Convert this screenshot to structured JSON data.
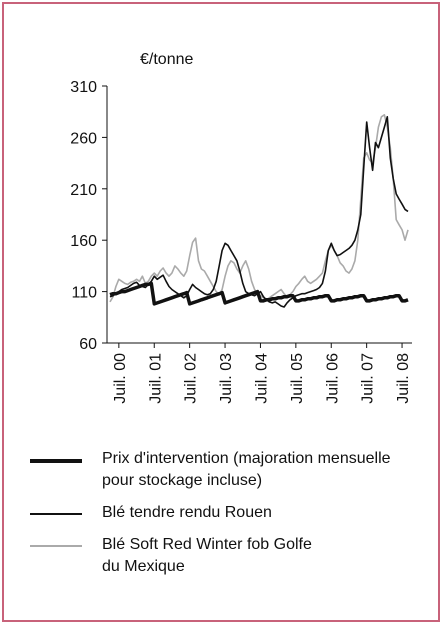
{
  "chart_data": {
    "type": "line",
    "ylabel": "€/tonne",
    "categories": [
      null,
      null,
      null,
      "Juil. 00",
      null,
      null,
      null,
      null,
      null,
      null,
      null,
      null,
      null,
      null,
      null,
      "Juil. 01",
      null,
      null,
      null,
      null,
      null,
      null,
      null,
      null,
      null,
      null,
      null,
      "Juil. 02",
      null,
      null,
      null,
      null,
      null,
      null,
      null,
      null,
      null,
      null,
      null,
      "Juil. 03",
      null,
      null,
      null,
      null,
      null,
      null,
      null,
      null,
      null,
      null,
      null,
      "Juil. 04",
      null,
      null,
      null,
      null,
      null,
      null,
      null,
      null,
      null,
      null,
      null,
      "Juil. 05",
      null,
      null,
      null,
      null,
      null,
      null,
      null,
      null,
      null,
      null,
      null,
      "Juil. 06",
      null,
      null,
      null,
      null,
      null,
      null,
      null,
      null,
      null,
      null,
      null,
      "Juil. 07",
      null,
      null,
      null,
      null,
      null,
      null,
      null,
      null,
      null,
      null,
      null,
      "Juil. 08",
      null,
      null
    ],
    "series": [
      {
        "name": "Prix d'intervention (majoration mensuelle pour stockage incluse)",
        "color": "#111111",
        "width": 3.5,
        "values": [
          107,
          108,
          108,
          109,
          110,
          110,
          111,
          112,
          113,
          114,
          115,
          116,
          117,
          117,
          118,
          98,
          99,
          100,
          101,
          102,
          103,
          104,
          105,
          106,
          107,
          108,
          109,
          98,
          99,
          100,
          101,
          102,
          103,
          104,
          105,
          106,
          107,
          108,
          109,
          99,
          100,
          101,
          102,
          103,
          104,
          105,
          106,
          107,
          108,
          109,
          110,
          101,
          101,
          102,
          102,
          103,
          103,
          104,
          104,
          105,
          105,
          106,
          106,
          101,
          101,
          102,
          102,
          103,
          103,
          104,
          104,
          105,
          105,
          106,
          106,
          101,
          101,
          102,
          102,
          103,
          103,
          104,
          104,
          105,
          105,
          106,
          106,
          101,
          101,
          102,
          102,
          103,
          103,
          104,
          104,
          105,
          105,
          106,
          106,
          101,
          101,
          102
        ]
      },
      {
        "name": "Blé tendre rendu Rouen",
        "color": "#111111",
        "width": 1.6,
        "values": [
          105,
          106,
          108,
          110,
          112,
          113,
          114,
          116,
          118,
          119,
          116,
          115,
          114,
          117,
          120,
          125,
          122,
          124,
          126,
          120,
          115,
          112,
          110,
          108,
          106,
          104,
          106,
          112,
          117,
          114,
          112,
          110,
          108,
          107,
          108,
          112,
          120,
          135,
          150,
          157,
          155,
          150,
          145,
          140,
          130,
          118,
          110,
          108,
          107,
          106,
          108,
          110,
          105,
          102,
          100,
          99,
          100,
          98,
          96,
          95,
          99,
          102,
          104,
          106,
          107,
          108,
          108,
          109,
          110,
          111,
          112,
          114,
          118,
          130,
          150,
          157,
          150,
          145,
          146,
          148,
          150,
          152,
          155,
          160,
          170,
          185,
          230,
          275,
          250,
          228,
          255,
          250,
          260,
          270,
          280,
          240,
          220,
          205,
          200,
          195,
          190,
          188
        ]
      },
      {
        "name": "Blé Soft Red Winter fob Golfe du Mexique",
        "color": "#aaaaaa",
        "width": 1.6,
        "values": [
          100,
          105,
          115,
          122,
          120,
          118,
          117,
          119,
          120,
          122,
          120,
          125,
          118,
          120,
          125,
          128,
          125,
          130,
          133,
          128,
          125,
          128,
          135,
          132,
          128,
          125,
          130,
          145,
          158,
          162,
          140,
          132,
          130,
          125,
          120,
          115,
          110,
          107,
          112,
          125,
          135,
          140,
          138,
          132,
          128,
          135,
          140,
          132,
          120,
          112,
          108,
          106,
          104,
          102,
          104,
          106,
          108,
          110,
          112,
          108,
          105,
          107,
          110,
          115,
          118,
          122,
          125,
          120,
          118,
          120,
          122,
          125,
          128,
          140,
          150,
          155,
          150,
          145,
          138,
          135,
          130,
          128,
          132,
          140,
          160,
          200,
          240,
          245,
          238,
          235,
          250,
          270,
          280,
          282,
          270,
          250,
          220,
          180,
          175,
          170,
          160,
          170
        ]
      }
    ],
    "ylim": [
      60,
      310
    ],
    "yticks": [
      60,
      110,
      160,
      210,
      260,
      310
    ]
  }
}
